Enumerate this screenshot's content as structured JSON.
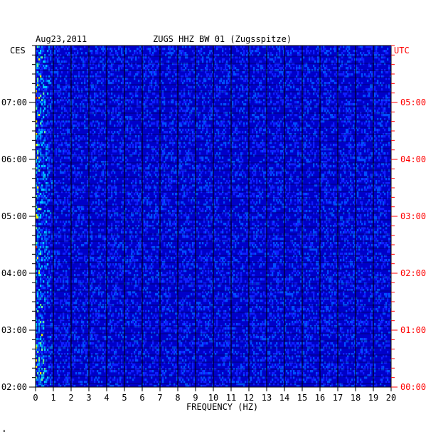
{
  "header": {
    "date": "Aug23,2011",
    "station": "ZUGS HHZ BW 01 (Zugsspitze)",
    "left_zone": "CES",
    "right_zone": "UTC"
  },
  "chart_data": {
    "type": "heatmap",
    "title": "ZUGS HHZ BW 01 (Zugsspitze)",
    "xlabel": "FREQUENCY (HZ)",
    "xlim": [
      0,
      20
    ],
    "x_ticks": [
      "0",
      "1",
      "2",
      "3",
      "4",
      "5",
      "6",
      "7",
      "8",
      "9",
      "10",
      "11",
      "12",
      "13",
      "14",
      "15",
      "16",
      "17",
      "18",
      "19",
      "20"
    ],
    "left_ticks": [
      "07:00",
      "06:00",
      "05:00",
      "04:00",
      "03:00",
      "02:00"
    ],
    "right_ticks": [
      "05:00",
      "04:00",
      "03:00",
      "02:00",
      "01:00",
      "00:00"
    ],
    "left_axis_label": "CES",
    "right_axis_label": "UTC",
    "grid": true,
    "colors": {
      "background": "#0000c8",
      "low": "#1020ff",
      "mid": "#00c8ff",
      "high": "#f0f000",
      "peak": "#ff2000",
      "grid": "#000000",
      "right_axis": "#ff0000"
    }
  },
  "footer_mark": "\""
}
